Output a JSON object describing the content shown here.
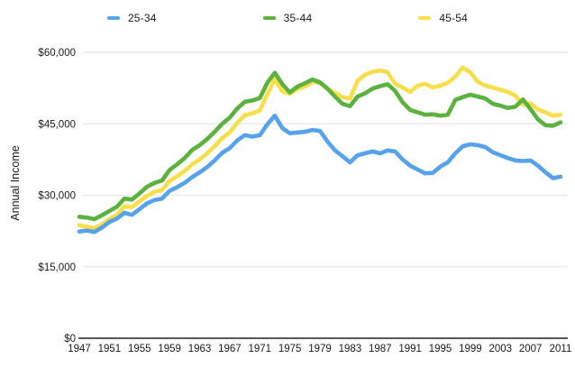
{
  "y_axis_title": "Annual Income",
  "colors": {
    "blue": "#56A3EC",
    "green": "#5CB23E",
    "yellow": "#F7DF4B",
    "grid": "#e7e7e7",
    "axis": "#222222",
    "text": "#1a1a1a"
  },
  "legend": {
    "items": [
      {
        "label": "25-34",
        "color": "#56A3EC"
      },
      {
        "label": "35-44",
        "color": "#5CB23E"
      },
      {
        "label": "45-54",
        "color": "#F7DF4B"
      }
    ]
  },
  "chart_data": {
    "type": "line",
    "title": "",
    "xlabel": "",
    "ylabel": "Annual Income",
    "ylim": [
      0,
      60000
    ],
    "grid": "horizontal",
    "legend_position": "top-center",
    "x": [
      1947,
      1948,
      1949,
      1950,
      1951,
      1952,
      1953,
      1954,
      1955,
      1956,
      1957,
      1958,
      1959,
      1960,
      1961,
      1962,
      1963,
      1964,
      1965,
      1966,
      1967,
      1968,
      1969,
      1970,
      1971,
      1972,
      1973,
      1974,
      1975,
      1976,
      1977,
      1978,
      1979,
      1980,
      1981,
      1982,
      1983,
      1984,
      1985,
      1986,
      1987,
      1988,
      1989,
      1990,
      1991,
      1992,
      1993,
      1994,
      1995,
      1996,
      1997,
      1998,
      1999,
      2000,
      2001,
      2002,
      2003,
      2004,
      2005,
      2006,
      2007,
      2008,
      2009,
      2010,
      2011
    ],
    "x_tick_years": [
      1947,
      1951,
      1955,
      1959,
      1963,
      1967,
      1971,
      1975,
      1979,
      1983,
      1987,
      1991,
      1995,
      1999,
      2003,
      2007,
      2011
    ],
    "y_tick_values": [
      0,
      15000,
      30000,
      45000,
      60000
    ],
    "y_tick_labels": [
      "$0",
      "$15,000",
      "$30,000",
      "$45,000",
      "$60,000"
    ],
    "series": [
      {
        "name": "25-34",
        "color": "#56A3EC",
        "z": 1,
        "values": [
          22400,
          22600,
          22300,
          23200,
          24400,
          25100,
          26300,
          25900,
          27100,
          28300,
          29000,
          29300,
          30900,
          31700,
          32600,
          33800,
          34800,
          35900,
          37300,
          38900,
          39900,
          41500,
          42600,
          42300,
          42600,
          44900,
          46700,
          44100,
          43000,
          43200,
          43300,
          43700,
          43500,
          41300,
          39400,
          38200,
          36900,
          38400,
          38800,
          39200,
          38800,
          39400,
          39200,
          37500,
          36200,
          35400,
          34600,
          34700,
          36000,
          36900,
          38800,
          40300,
          40700,
          40500,
          40100,
          39000,
          38400,
          37800,
          37300,
          37200,
          37300,
          36200,
          34800,
          33600,
          33900
        ]
      },
      {
        "name": "35-44",
        "color": "#5CB23E",
        "z": 2,
        "values": [
          25500,
          25300,
          25000,
          25800,
          26700,
          27600,
          29300,
          29100,
          30400,
          31800,
          32600,
          33100,
          35300,
          36500,
          37800,
          39500,
          40500,
          41800,
          43300,
          45000,
          46300,
          48200,
          49600,
          49900,
          50400,
          53600,
          55700,
          53300,
          51600,
          52800,
          53500,
          54300,
          53700,
          52400,
          50700,
          49200,
          48700,
          50700,
          51400,
          52400,
          52900,
          53300,
          51900,
          49500,
          47900,
          47400,
          46900,
          47000,
          46700,
          46900,
          50000,
          50600,
          51100,
          50700,
          50300,
          49200,
          48800,
          48300,
          48600,
          50100,
          48100,
          45900,
          44700,
          44600,
          45300
        ]
      },
      {
        "name": "45-54",
        "color": "#F7DF4B",
        "z": 0,
        "values": [
          23700,
          23400,
          23100,
          23900,
          25000,
          25900,
          27700,
          27500,
          28700,
          29900,
          30700,
          31100,
          33000,
          34000,
          35100,
          36500,
          37500,
          38800,
          40300,
          42000,
          43200,
          45200,
          46800,
          47200,
          47800,
          51200,
          54300,
          51800,
          51300,
          52300,
          52800,
          53800,
          53600,
          52300,
          51500,
          50600,
          50300,
          54000,
          55300,
          55900,
          56200,
          55800,
          53400,
          52600,
          51700,
          53000,
          53400,
          52600,
          53000,
          53600,
          54900,
          56800,
          55800,
          53800,
          53000,
          52600,
          52100,
          51700,
          50900,
          49000,
          49300,
          48000,
          47400,
          46700,
          46900
        ]
      }
    ]
  }
}
